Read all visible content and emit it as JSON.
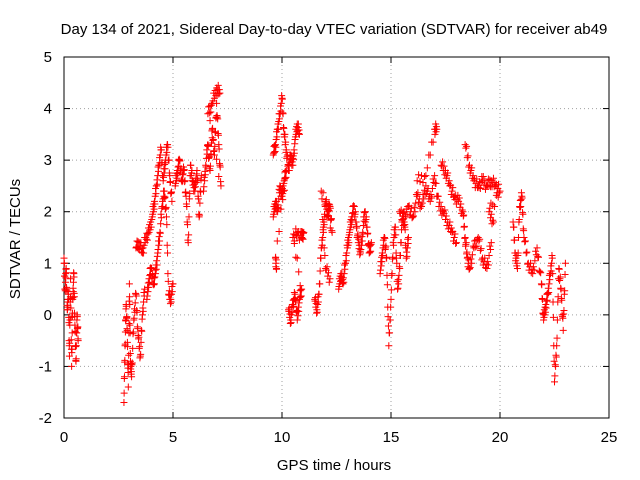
{
  "chart_data": {
    "type": "scatter",
    "title": "Day 134 of 2021, Sidereal Day-to-day VTEC variation (SDTVAR) for receiver ab49",
    "xlabel": "GPS time / hours",
    "ylabel": "SDTVAR / TECUs",
    "xlim": [
      0,
      25
    ],
    "ylim": [
      -2,
      5
    ],
    "xticks": [
      0,
      5,
      10,
      15,
      20,
      25
    ],
    "yticks": [
      -2,
      -1,
      0,
      1,
      2,
      3,
      4,
      5
    ],
    "grid": true,
    "marker": "+",
    "color": "#ff0000",
    "series": [
      {
        "name": "ab49 SDTVAR",
        "segments": [
          [
            [
              0.0,
              1.1
            ],
            [
              0.05,
              0.5
            ],
            [
              0.1,
              0.9
            ],
            [
              0.15,
              0.1
            ],
            [
              0.2,
              0.4
            ],
            [
              0.25,
              -0.8
            ],
            [
              0.3,
              0.7
            ],
            [
              0.35,
              -1.0
            ],
            [
              0.4,
              0.3
            ],
            [
              0.45,
              0.8
            ],
            [
              0.5,
              -0.2
            ],
            [
              0.55,
              -0.9
            ],
            [
              0.6,
              0.0
            ],
            [
              0.65,
              -0.5
            ]
          ],
          [
            [
              2.75,
              -1.7
            ],
            [
              2.8,
              -0.6
            ],
            [
              2.85,
              0.2
            ],
            [
              2.9,
              -0.3
            ],
            [
              2.95,
              -1.4
            ],
            [
              3.0,
              0.6
            ],
            [
              3.05,
              -0.9
            ],
            [
              3.1,
              -1.2
            ],
            [
              3.2,
              -0.1
            ],
            [
              3.3,
              0.4
            ],
            [
              3.4,
              -0.4
            ],
            [
              3.5,
              -0.8
            ],
            [
              3.6,
              0.0
            ],
            [
              3.7,
              0.5
            ]
          ],
          [
            [
              3.3,
              1.3
            ],
            [
              3.45,
              1.4
            ],
            [
              3.6,
              1.2
            ],
            [
              3.75,
              1.5
            ],
            [
              3.9,
              1.6
            ],
            [
              4.05,
              1.9
            ],
            [
              4.15,
              2.2
            ],
            [
              4.25,
              2.5
            ],
            [
              4.35,
              2.9
            ],
            [
              4.45,
              3.2
            ],
            [
              4.55,
              2.6
            ],
            [
              4.65,
              3.0
            ],
            [
              4.75,
              3.3
            ],
            [
              4.85,
              2.7
            ],
            [
              4.95,
              2.2
            ]
          ],
          [
            [
              3.8,
              0.3
            ],
            [
              3.9,
              0.7
            ],
            [
              4.0,
              0.9
            ],
            [
              4.1,
              0.6
            ],
            [
              4.2,
              0.8
            ],
            [
              4.3,
              1.2
            ],
            [
              4.4,
              1.6
            ],
            [
              4.5,
              2.1
            ],
            [
              4.6,
              2.4
            ],
            [
              4.7,
              1.9
            ],
            [
              4.8,
              0.4
            ],
            [
              4.9,
              0.3
            ],
            [
              5.0,
              0.6
            ]
          ],
          [
            [
              5.1,
              2.5
            ],
            [
              5.2,
              2.8
            ],
            [
              5.3,
              3.0
            ],
            [
              5.4,
              2.6
            ],
            [
              5.5,
              2.8
            ],
            [
              5.6,
              2.3
            ],
            [
              5.7,
              1.4
            ],
            [
              5.8,
              2.9
            ],
            [
              5.9,
              2.6
            ],
            [
              6.0,
              2.4
            ],
            [
              6.1,
              2.8
            ],
            [
              6.2,
              1.9
            ],
            [
              6.3,
              2.7
            ]
          ],
          [
            [
              6.4,
              2.4
            ],
            [
              6.5,
              2.9
            ],
            [
              6.6,
              3.3
            ],
            [
              6.7,
              2.8
            ],
            [
              6.8,
              3.6
            ],
            [
              6.9,
              3.1
            ],
            [
              7.0,
              4.1
            ],
            [
              7.1,
              3.3
            ],
            [
              7.2,
              2.5
            ],
            [
              6.6,
              3.9
            ],
            [
              6.8,
              4.1
            ],
            [
              7.0,
              4.4
            ],
            [
              7.15,
              4.3
            ]
          ],
          [
            [
              9.6,
              3.1
            ],
            [
              9.7,
              3.3
            ],
            [
              9.8,
              3.6
            ],
            [
              9.9,
              3.9
            ],
            [
              10.0,
              4.2
            ],
            [
              10.1,
              3.5
            ],
            [
              10.2,
              3.2
            ],
            [
              10.3,
              2.8
            ],
            [
              10.4,
              3.1
            ],
            [
              10.5,
              2.9
            ],
            [
              10.6,
              3.4
            ],
            [
              10.7,
              3.7
            ],
            [
              10.8,
              3.5
            ]
          ],
          [
            [
              9.6,
              1.9
            ],
            [
              9.7,
              2.2
            ],
            [
              9.8,
              2.0
            ],
            [
              9.9,
              2.5
            ],
            [
              10.0,
              2.3
            ],
            [
              10.1,
              2.6
            ],
            [
              10.2,
              2.8
            ],
            [
              9.7,
              1.1
            ],
            [
              9.75,
              0.9
            ]
          ],
          [
            [
              10.3,
              0.1
            ],
            [
              10.4,
              -0.1
            ],
            [
              10.5,
              0.2
            ],
            [
              10.6,
              0.4
            ],
            [
              10.7,
              -0.1
            ],
            [
              10.8,
              0.3
            ],
            [
              10.9,
              0.5
            ],
            [
              10.5,
              1.5
            ],
            [
              10.7,
              1.6
            ],
            [
              10.9,
              1.5
            ],
            [
              11.0,
              1.6
            ]
          ],
          [
            [
              11.5,
              0.3
            ],
            [
              11.6,
              0.1
            ],
            [
              11.7,
              0.4
            ],
            [
              11.8,
              1.3
            ],
            [
              11.9,
              1.6
            ],
            [
              12.0,
              2.2
            ],
            [
              12.1,
              2.0
            ],
            [
              12.2,
              2.1
            ],
            [
              12.3,
              1.6
            ],
            [
              11.8,
              2.4
            ],
            [
              12.0,
              0.9
            ],
            [
              12.2,
              0.7
            ]
          ],
          [
            [
              12.6,
              0.5
            ],
            [
              12.7,
              0.8
            ],
            [
              12.8,
              0.6
            ],
            [
              12.9,
              1.0
            ],
            [
              13.0,
              1.3
            ],
            [
              13.1,
              1.6
            ],
            [
              13.2,
              1.9
            ],
            [
              13.3,
              2.1
            ],
            [
              13.4,
              1.8
            ],
            [
              13.5,
              1.4
            ],
            [
              13.6,
              1.2
            ],
            [
              13.7,
              1.6
            ],
            [
              13.8,
              2.0
            ],
            [
              13.9,
              1.7
            ],
            [
              14.0,
              1.2
            ],
            [
              14.1,
              1.4
            ]
          ],
          [
            [
              14.5,
              0.8
            ],
            [
              14.6,
              1.2
            ],
            [
              14.7,
              1.5
            ],
            [
              14.8,
              1.1
            ],
            [
              14.9,
              -0.6
            ],
            [
              15.0,
              0.3
            ],
            [
              15.1,
              1.4
            ],
            [
              15.2,
              1.7
            ],
            [
              15.3,
              0.5
            ],
            [
              15.4,
              0.9
            ],
            [
              15.5,
              1.8
            ],
            [
              15.6,
              2.0
            ],
            [
              15.7,
              1.1
            ],
            [
              15.8,
              1.5
            ]
          ],
          [
            [
              15.4,
              2.0
            ],
            [
              15.6,
              1.8
            ],
            [
              15.8,
              2.1
            ],
            [
              16.0,
              1.9
            ],
            [
              16.2,
              2.3
            ],
            [
              16.4,
              2.1
            ],
            [
              16.6,
              2.5
            ],
            [
              16.8,
              2.2
            ],
            [
              17.0,
              2.7
            ],
            [
              17.2,
              2.1
            ],
            [
              17.4,
              2.0
            ],
            [
              17.6,
              1.8
            ],
            [
              17.8,
              1.6
            ],
            [
              18.0,
              1.4
            ],
            [
              16.2,
              2.6
            ],
            [
              16.6,
              2.7
            ],
            [
              17.0,
              3.6
            ],
            [
              17.1,
              3.6
            ]
          ],
          [
            [
              17.3,
              2.9
            ],
            [
              17.5,
              2.8
            ],
            [
              17.7,
              2.5
            ],
            [
              17.9,
              2.3
            ],
            [
              18.1,
              2.2
            ],
            [
              18.3,
              2.0
            ],
            [
              18.4,
              1.5
            ],
            [
              18.5,
              1.1
            ],
            [
              18.6,
              0.9
            ],
            [
              18.8,
              1.3
            ],
            [
              19.0,
              1.5
            ],
            [
              19.2,
              1.1
            ],
            [
              19.4,
              0.9
            ],
            [
              19.6,
              1.4
            ]
          ],
          [
            [
              18.4,
              3.3
            ],
            [
              18.6,
              2.9
            ],
            [
              18.8,
              2.6
            ],
            [
              19.0,
              2.5
            ],
            [
              19.2,
              2.6
            ],
            [
              19.4,
              2.5
            ],
            [
              19.6,
              2.6
            ],
            [
              19.8,
              2.5
            ],
            [
              20.0,
              2.4
            ],
            [
              19.5,
              2.0
            ],
            [
              19.7,
              1.8
            ]
          ],
          [
            [
              20.6,
              1.8
            ],
            [
              20.7,
              1.2
            ],
            [
              20.8,
              0.9
            ],
            [
              20.9,
              2.1
            ],
            [
              21.0,
              2.3
            ],
            [
              21.1,
              1.5
            ],
            [
              21.3,
              1.0
            ],
            [
              21.5,
              0.8
            ],
            [
              21.7,
              1.3
            ],
            [
              21.9,
              0.6
            ],
            [
              22.0,
              -0.1
            ],
            [
              22.1,
              0.2
            ],
            [
              22.2,
              0.4
            ],
            [
              22.3,
              0.8
            ],
            [
              22.4,
              1.1
            ],
            [
              22.5,
              -1.3
            ],
            [
              22.6,
              -0.6
            ],
            [
              22.7,
              0.9
            ],
            [
              22.8,
              0.5
            ],
            [
              22.9,
              -0.3
            ],
            [
              23.0,
              1.0
            ]
          ]
        ]
      }
    ]
  }
}
